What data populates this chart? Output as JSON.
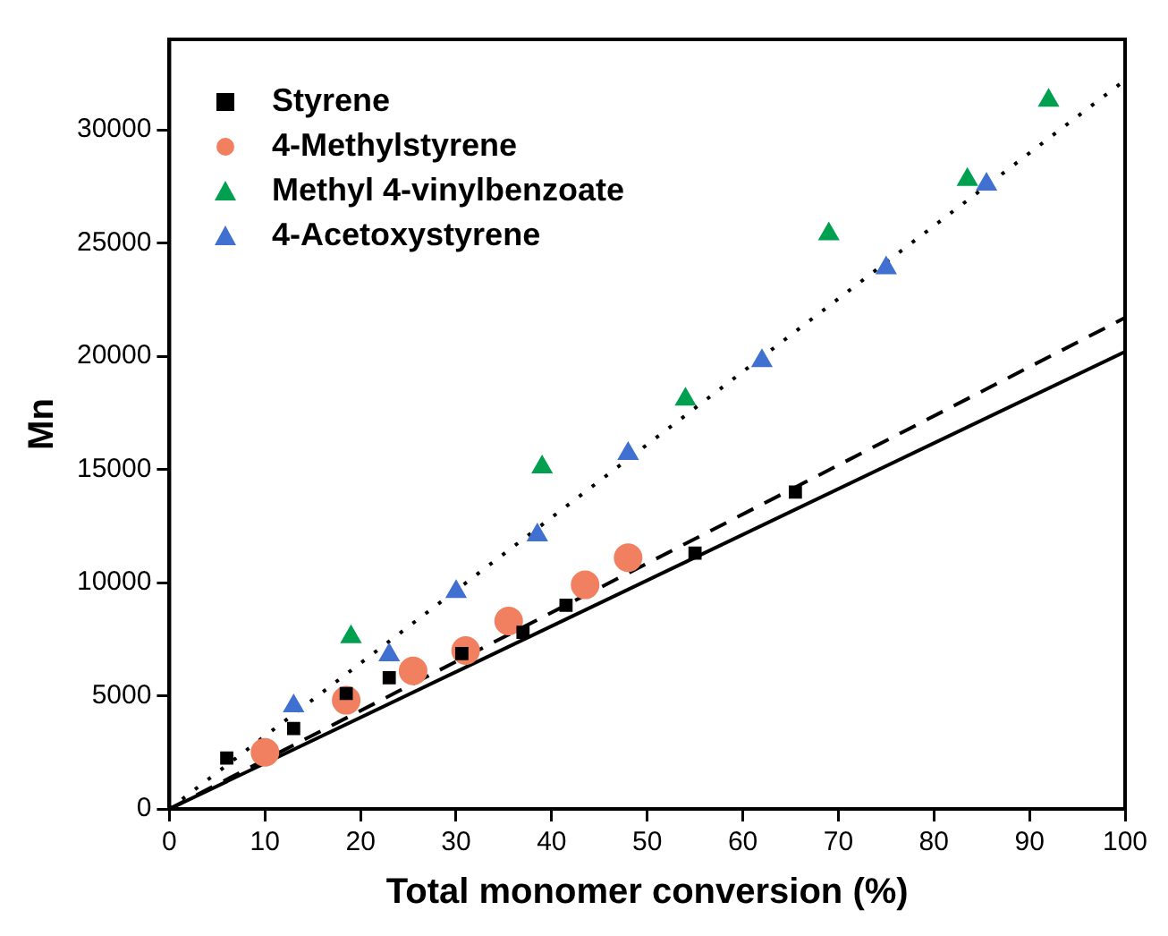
{
  "chart_data": {
    "type": "scatter",
    "xlabel": "Total monomer conversion (%)",
    "ylabel": "Mn",
    "xlim": [
      0,
      100
    ],
    "xticks": [
      0,
      10,
      20,
      30,
      40,
      50,
      60,
      70,
      80,
      90,
      100
    ],
    "ylim": [
      0,
      34000
    ],
    "yticks": [
      0,
      5000,
      10000,
      15000,
      20000,
      25000,
      30000
    ],
    "grid": false,
    "legend": "top left",
    "series": [
      {
        "name": "Styrene",
        "color": "#000000",
        "marker": "square",
        "x": [
          6,
          13,
          18.5,
          23,
          30.6,
          37,
          41.5,
          55,
          65.5
        ],
        "values": [
          2250,
          3550,
          5100,
          5800,
          6860,
          7800,
          9000,
          11300,
          14000
        ]
      },
      {
        "name": "4-Methylstyrene",
        "color": "#f08060",
        "marker": "circle",
        "x": [
          10,
          18.5,
          25.5,
          31,
          35.5,
          43.5,
          48
        ],
        "values": [
          2500,
          4800,
          6100,
          7000,
          8300,
          9900,
          11100
        ]
      },
      {
        "name": "Methyl 4-vinylbenzoate",
        "color": "#00a050",
        "marker": "triangle",
        "x": [
          19,
          39,
          54,
          69,
          83.5,
          92
        ],
        "values": [
          7600,
          15100,
          18100,
          25400,
          27800,
          31300
        ]
      },
      {
        "name": "4-Acetoxystyrene",
        "color": "#4070d0",
        "marker": "triangle",
        "x": [
          13,
          23,
          30,
          38.5,
          48,
          62,
          75,
          85.5
        ],
        "values": [
          4550,
          6800,
          9600,
          12100,
          15700,
          19800,
          23900,
          27600
        ]
      },
      {
        "type": "line",
        "color": "#000000",
        "marker": "none",
        "line_style": "solid",
        "x": [
          0,
          100
        ],
        "values": [
          0,
          20200
        ]
      },
      {
        "type": "line",
        "color": "#000000",
        "marker": "none",
        "line_style": "dashed",
        "x": [
          0,
          100
        ],
        "values": [
          0,
          21700
        ]
      },
      {
        "type": "line",
        "color": "#000000",
        "marker": "none",
        "line_style": "dotted",
        "x": [
          0,
          100
        ],
        "values": [
          0,
          32200
        ]
      }
    ]
  }
}
